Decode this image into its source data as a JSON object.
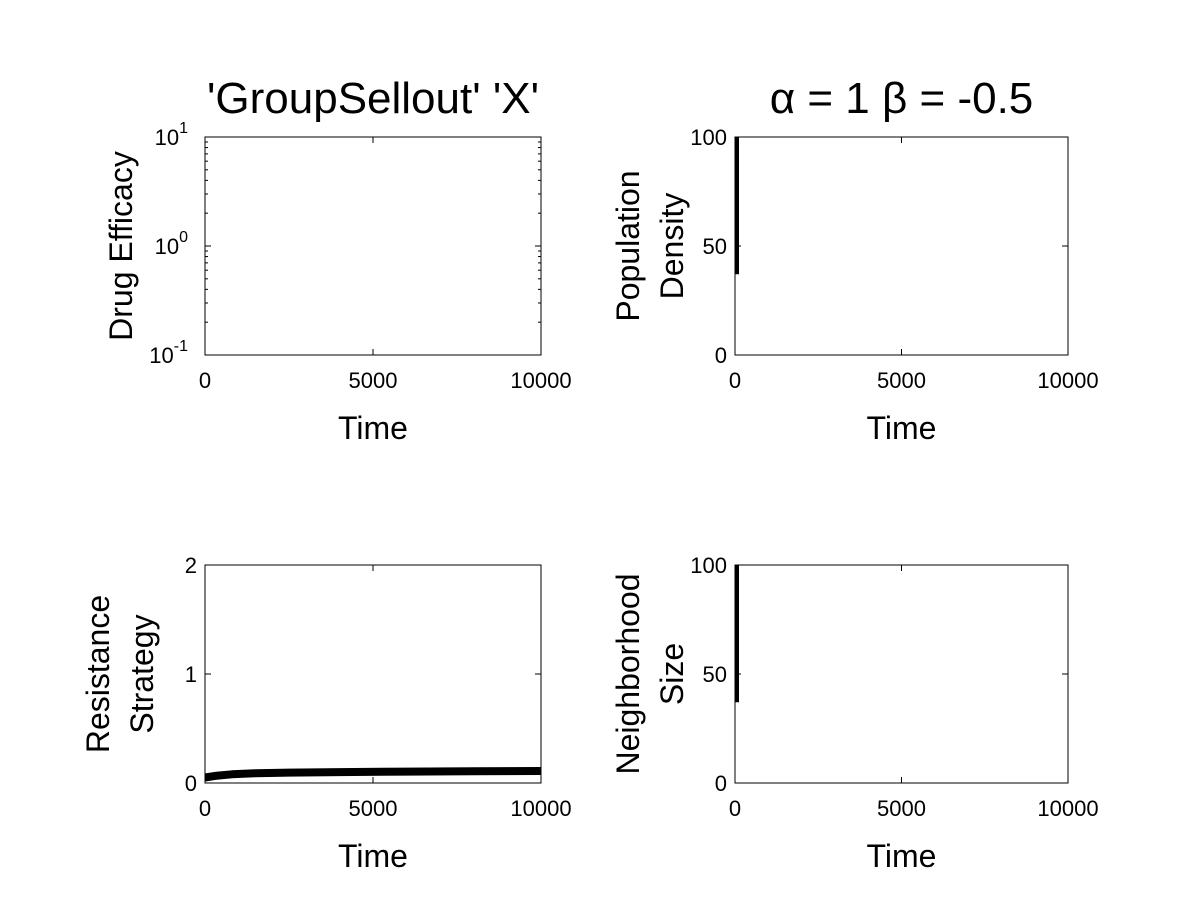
{
  "chart_data": [
    {
      "id": "drug-efficacy",
      "type": "line",
      "title": "'GroupSellout' 'X'",
      "xlabel": "Time",
      "ylabel": [
        "Drug Efficacy"
      ],
      "xlim": [
        0,
        10000
      ],
      "ylim": [
        0.1,
        10
      ],
      "yscale": "log",
      "xticks": [
        {
          "value": 0,
          "label": "0"
        },
        {
          "value": 5000,
          "label": "5000"
        },
        {
          "value": 10000,
          "label": "10000"
        }
      ],
      "yticks": [
        {
          "value": 0.1,
          "base": "10",
          "exp": "-1"
        },
        {
          "value": 1,
          "base": "10",
          "exp": "0"
        },
        {
          "value": 10,
          "base": "10",
          "exp": "1"
        }
      ],
      "series": []
    },
    {
      "id": "population-density",
      "type": "line",
      "title": "α = 1 β = -0.5",
      "xlabel": "Time",
      "ylabel": [
        "Population",
        "Density"
      ],
      "xlim": [
        0,
        10000
      ],
      "ylim": [
        0,
        100
      ],
      "yscale": "linear",
      "xticks": [
        {
          "value": 0,
          "label": "0"
        },
        {
          "value": 5000,
          "label": "5000"
        },
        {
          "value": 10000,
          "label": "10000"
        }
      ],
      "yticks": [
        {
          "value": 0,
          "label": "0"
        },
        {
          "value": 50,
          "label": "50"
        },
        {
          "value": 100,
          "label": "100"
        }
      ],
      "series": [
        {
          "x": [
            60,
            60
          ],
          "y": [
            37,
            100
          ],
          "width": 4
        }
      ]
    },
    {
      "id": "resistance-strategy",
      "type": "line",
      "title": "",
      "xlabel": "Time",
      "ylabel": [
        "Resistance",
        "Strategy"
      ],
      "xlim": [
        0,
        10000
      ],
      "ylim": [
        0,
        2
      ],
      "yscale": "linear",
      "xticks": [
        {
          "value": 0,
          "label": "0"
        },
        {
          "value": 5000,
          "label": "5000"
        },
        {
          "value": 10000,
          "label": "10000"
        }
      ],
      "yticks": [
        {
          "value": 0,
          "label": "0"
        },
        {
          "value": 1,
          "label": "1"
        },
        {
          "value": 2,
          "label": "2"
        }
      ],
      "series": [
        {
          "x": [
            0,
            300,
            800,
            1500,
            2500,
            4000,
            6000,
            8000,
            10000
          ],
          "y": [
            0.05,
            0.065,
            0.08,
            0.09,
            0.095,
            0.1,
            0.105,
            0.108,
            0.11
          ],
          "width": 8
        }
      ]
    },
    {
      "id": "neighborhood-size",
      "type": "line",
      "title": "",
      "xlabel": "Time",
      "ylabel": [
        "Neighborhood",
        "Size"
      ],
      "xlim": [
        0,
        10000
      ],
      "ylim": [
        0,
        100
      ],
      "yscale": "linear",
      "xticks": [
        {
          "value": 0,
          "label": "0"
        },
        {
          "value": 5000,
          "label": "5000"
        },
        {
          "value": 10000,
          "label": "10000"
        }
      ],
      "yticks": [
        {
          "value": 0,
          "label": "0"
        },
        {
          "value": 50,
          "label": "50"
        },
        {
          "value": 100,
          "label": "100"
        }
      ],
      "series": [
        {
          "x": [
            60,
            60
          ],
          "y": [
            37,
            100
          ],
          "width": 4
        }
      ]
    }
  ]
}
